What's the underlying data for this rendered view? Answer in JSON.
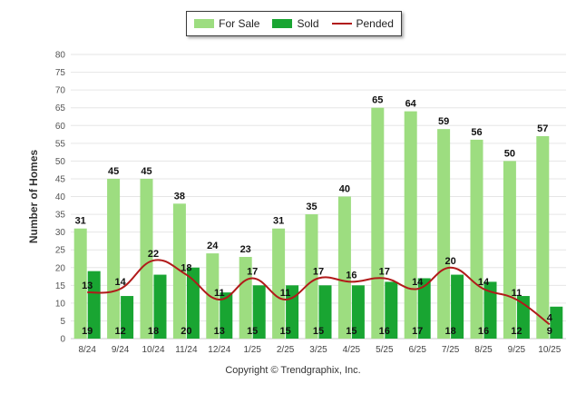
{
  "colors": {
    "for_sale": "#9ddd80",
    "sold": "#19a532",
    "pended": "#b11a1a",
    "grid": "#e6e6e6",
    "text": "#333333"
  },
  "legend": {
    "for_sale": "For Sale",
    "sold": "Sold",
    "pended": "Pended"
  },
  "copyright": "Copyright © Trendgraphix, Inc.",
  "chart_data": {
    "type": "bar",
    "title": "",
    "xlabel": "",
    "ylabel": "Number of Homes",
    "ylim": [
      0,
      80
    ],
    "yticks": [
      0,
      5,
      10,
      15,
      20,
      25,
      30,
      35,
      40,
      45,
      50,
      55,
      60,
      65,
      70,
      75,
      80
    ],
    "grid": true,
    "legend_position": "top-center",
    "categories": [
      "8/24",
      "9/24",
      "10/24",
      "11/24",
      "12/24",
      "1/25",
      "2/25",
      "3/25",
      "4/25",
      "5/25",
      "6/25",
      "7/25",
      "8/25",
      "9/25",
      "10/25"
    ],
    "series": [
      {
        "name": "For Sale",
        "type": "bar",
        "values": [
          31,
          45,
          45,
          38,
          24,
          23,
          31,
          35,
          40,
          65,
          64,
          59,
          56,
          50,
          57
        ]
      },
      {
        "name": "Sold",
        "type": "bar",
        "values": [
          19,
          12,
          18,
          20,
          13,
          15,
          15,
          15,
          15,
          16,
          17,
          18,
          16,
          12,
          9
        ]
      },
      {
        "name": "Pended",
        "type": "line",
        "values": [
          13,
          14,
          22,
          18,
          11,
          17,
          11,
          17,
          16,
          17,
          14,
          20,
          14,
          11,
          4
        ]
      }
    ]
  }
}
